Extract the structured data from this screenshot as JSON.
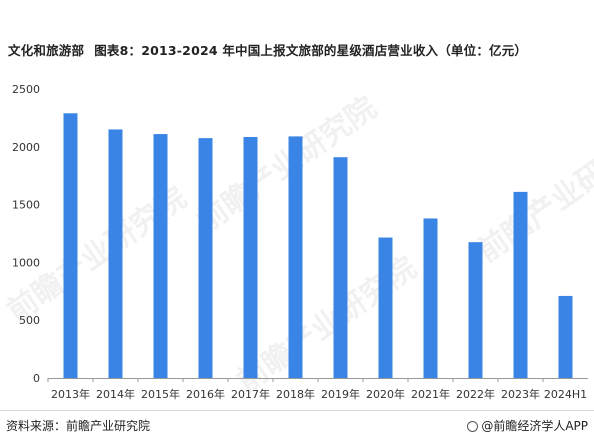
{
  "title": {
    "section": "文化和旅游部",
    "main": "图表8：2013-2024 年中国上报文旅部的星级酒店营业收入（单位：亿元）"
  },
  "footer": {
    "source": "资料来源：前瞻产业研究院",
    "brand": "@前瞻经济学人APP"
  },
  "watermark": "前瞻产业研究院",
  "colors": {
    "bar": "#3a84e6",
    "axis": "#999999",
    "text": "#333333"
  },
  "chart_data": {
    "type": "bar",
    "categories": [
      "2013年",
      "2014年",
      "2015年",
      "2016年",
      "2017年",
      "2018年",
      "2019年",
      "2020年",
      "2021年",
      "2022年",
      "2023年",
      "2024H1"
    ],
    "values": [
      2290,
      2150,
      2110,
      2075,
      2085,
      2090,
      1910,
      1215,
      1380,
      1175,
      1610,
      710
    ],
    "yticks": [
      0,
      500,
      1000,
      1500,
      2000,
      2500
    ],
    "ylim": [
      0,
      2500
    ],
    "grid": false,
    "legend": "none"
  }
}
